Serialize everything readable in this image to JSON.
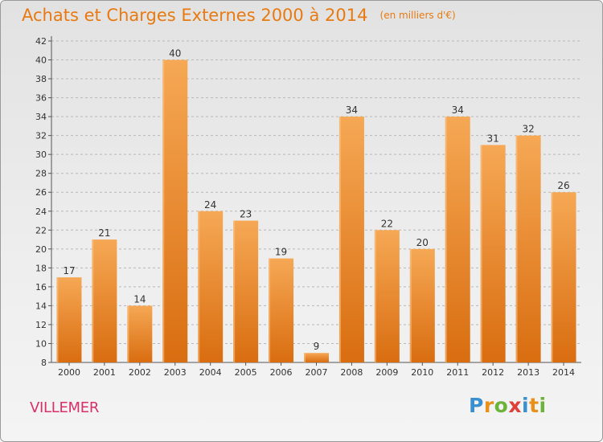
{
  "header": {
    "title": "Achats et Charges Externes 2000 à 2014",
    "unit": "(en milliers d'€)"
  },
  "footer": {
    "commune": "VILLEMER",
    "brand": "Proxiti",
    "brand_letters": [
      {
        "ch": "P",
        "color": "#3a8fd0"
      },
      {
        "ch": "r",
        "color": "#e8901a"
      },
      {
        "ch": "o",
        "color": "#6cb33a"
      },
      {
        "ch": "x",
        "color": "#e0403a"
      },
      {
        "ch": "i",
        "color": "#3a8fd0"
      },
      {
        "ch": "t",
        "color": "#e8901a"
      },
      {
        "ch": "i",
        "color": "#6cb33a"
      }
    ]
  },
  "chart_data": {
    "type": "bar",
    "title": "Achats et Charges Externes 2000 à 2014",
    "subtitle": "(en milliers d'€)",
    "xlabel": "",
    "ylabel": "",
    "categories": [
      "2000",
      "2001",
      "2002",
      "2003",
      "2004",
      "2005",
      "2006",
      "2007",
      "2008",
      "2009",
      "2010",
      "2011",
      "2012",
      "2013",
      "2014"
    ],
    "values": [
      17,
      21,
      14,
      40,
      24,
      23,
      19,
      9,
      34,
      22,
      20,
      34,
      31,
      32,
      26
    ],
    "ylim": [
      8,
      42
    ],
    "yticks": [
      8,
      10,
      12,
      14,
      16,
      18,
      20,
      22,
      24,
      26,
      28,
      30,
      32,
      34,
      36,
      38,
      40,
      42
    ],
    "grid": "horizontal dashed",
    "legend": "none",
    "bar_color_top": "#f6a855",
    "bar_color_bottom": "#d96d10"
  }
}
